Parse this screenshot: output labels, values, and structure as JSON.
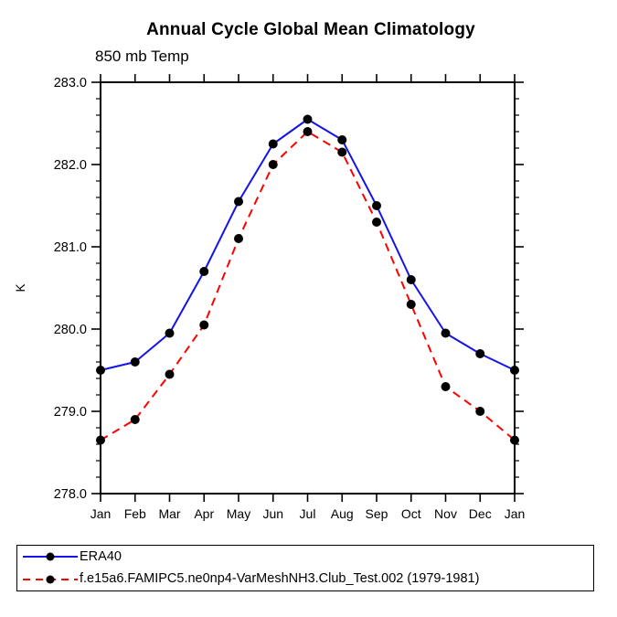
{
  "title": "Annual Cycle Global Mean Climatology",
  "subtitle": "850 mb Temp",
  "ylabel": "K",
  "colors": {
    "era40_line": "#1414e6",
    "model_line": "#ff0000",
    "marker": "#000000",
    "axis": "#000000",
    "background": "#ffffff"
  },
  "legend": {
    "items": [
      {
        "label": "ERA40",
        "line_style": "solid",
        "color": "#1414e6"
      },
      {
        "label": "f.e15a6.FAMIPC5.ne0np4-VarMeshNH3.Club_Test.002 (1979-1981)",
        "line_style": "dashed",
        "color": "#ff0000"
      }
    ]
  },
  "chart_data": {
    "type": "line",
    "title": "Annual Cycle Global Mean Climatology",
    "subtitle": "850 mb Temp",
    "xlabel": "",
    "ylabel": "K",
    "categories": [
      "Jan",
      "Feb",
      "Mar",
      "Apr",
      "May",
      "Jun",
      "Jul",
      "Aug",
      "Sep",
      "Oct",
      "Nov",
      "Dec",
      "Jan"
    ],
    "series": [
      {
        "name": "ERA40",
        "color": "#1414e6",
        "style": "solid",
        "marker": "filled-circle",
        "values": [
          279.5,
          279.6,
          279.95,
          280.7,
          281.55,
          282.25,
          282.55,
          282.3,
          281.5,
          280.6,
          279.95,
          279.7,
          279.5
        ]
      },
      {
        "name": "f.e15a6.FAMIPC5.ne0np4-VarMeshNH3.Club_Test.002 (1979-1981)",
        "color": "#ff0000",
        "style": "dashed",
        "marker": "filled-circle",
        "values": [
          278.65,
          278.9,
          279.45,
          280.05,
          281.1,
          282.0,
          282.4,
          282.15,
          281.3,
          280.3,
          279.3,
          279.0,
          278.65
        ]
      }
    ],
    "ylim": [
      278.0,
      283.0
    ],
    "ytick_step": 1.0,
    "yminor_step": 0.2,
    "ytick_format": "one_decimal",
    "grid": false,
    "legend_position": "bottom-left-box"
  }
}
